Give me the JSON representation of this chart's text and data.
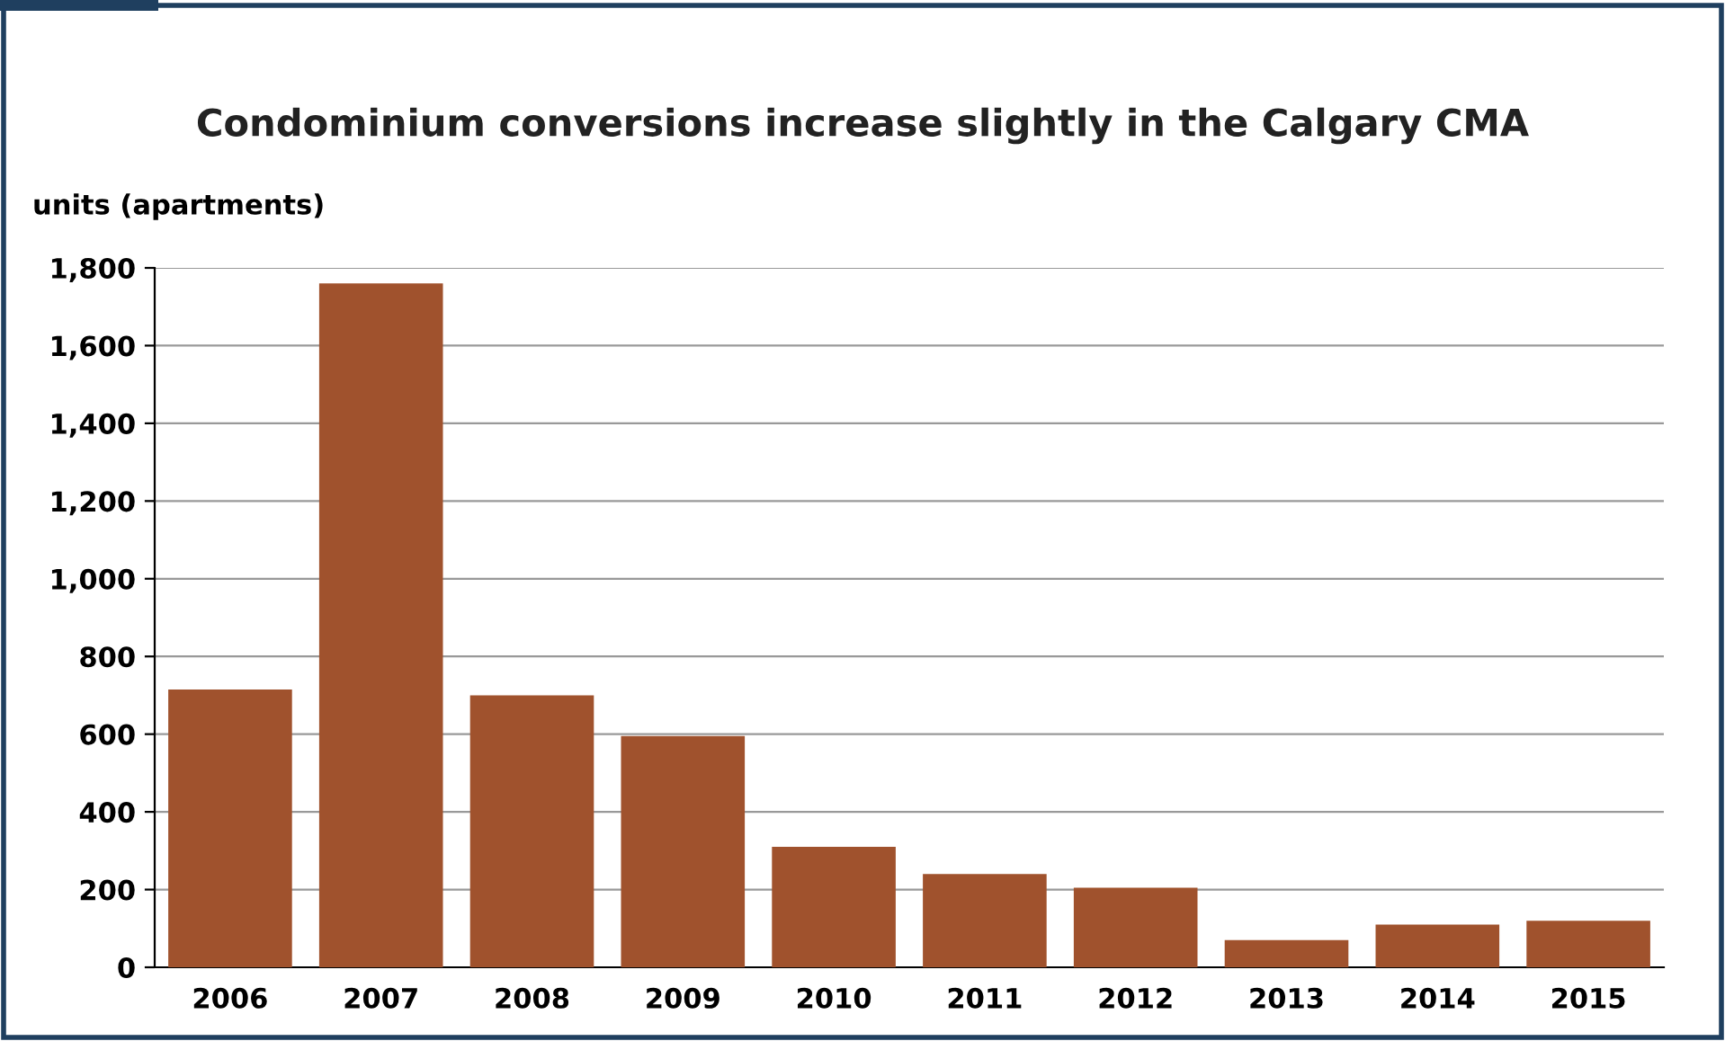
{
  "chart_data": {
    "type": "bar",
    "title": "Condominium conversions increase slightly in the Calgary CMA",
    "ylabel": "units (apartments)",
    "categories": [
      "2006",
      "2007",
      "2008",
      "2009",
      "2010",
      "2011",
      "2012",
      "2013",
      "2014",
      "2015"
    ],
    "values": [
      715,
      1760,
      700,
      595,
      310,
      240,
      205,
      70,
      110,
      120
    ],
    "color": "#a0522d",
    "ylim": [
      0,
      1800
    ],
    "yticks": [
      {
        "value": 0,
        "label": "0"
      },
      {
        "value": 200,
        "label": "200"
      },
      {
        "value": 400,
        "label": "400"
      },
      {
        "value": 600,
        "label": "600"
      },
      {
        "value": 800,
        "label": "800"
      },
      {
        "value": 1000,
        "label": "1,000"
      },
      {
        "value": 1200,
        "label": "1,200"
      },
      {
        "value": 1400,
        "label": "1,400"
      },
      {
        "value": 1600,
        "label": "1,600"
      },
      {
        "value": 1800,
        "label": "1,800"
      }
    ],
    "grid": "y",
    "legend": false
  }
}
